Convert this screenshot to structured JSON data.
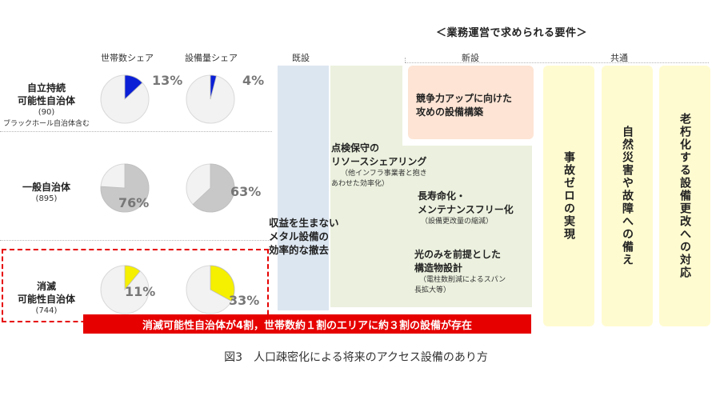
{
  "header": {
    "requirements_title": "＜業務運営で求められる要件＞",
    "col_household_share": "世帯数シェア",
    "col_equipment_share": "設備量シェア",
    "col_existing": "既設",
    "col_new": "新設",
    "col_common": "共通"
  },
  "rows": [
    {
      "name_line1": "自立持続",
      "name_line2": "可能性自治体",
      "count": "(90)",
      "note": "ブラックホール自治体含む",
      "household_pct": "13%",
      "equipment_pct": "4%",
      "household_value": 13,
      "equipment_value": 4,
      "fill_color": "#0a1fd6"
    },
    {
      "name_line1": "一般自治体",
      "count": "(895)",
      "household_pct": "76%",
      "equipment_pct": "63%",
      "household_value": 76,
      "equipment_value": 63,
      "fill_color": "#c8c8c8"
    },
    {
      "name_line1": "消滅",
      "name_line2": "可能性自治体",
      "count": "(744)",
      "household_pct": "11%",
      "equipment_pct": "33%",
      "household_value": 11,
      "equipment_value": 33,
      "fill_color": "#f5ef00"
    }
  ],
  "boxes": {
    "withdraw_line1": "収益を生まない",
    "withdraw_line2": "メタル設備の",
    "withdraw_line3": "効率的な撤去",
    "maintenance_line1": "点検保守の",
    "maintenance_line2": "リソースシェアリング",
    "maintenance_note1": "（他インフラ事業者と抱き",
    "maintenance_note2": "あわせた効率化）",
    "competitive_line1": "競争力アップに向けた",
    "competitive_line2": "攻めの設備構築",
    "longevity_line1": "長寿命化・",
    "longevity_line2": "メンテナンスフリー化",
    "longevity_note": "（設備更改量の縮減）",
    "optical_line1": "光のみを前提とした",
    "optical_line2": "構造物設計",
    "optical_note1": "（電柱数削減によるスパン",
    "optical_note2": "長拡大等）",
    "zero_accident": "事故ゼロの実現",
    "disaster": "自然災害や故障への備え",
    "aging": "老朽化する設備更改への対応"
  },
  "banner": "消滅可能性自治体が4割，世帯数約１割のエリアに約３割の設備が存在",
  "caption": "図3　人口疎密化による将来のアクセス設備のあり方",
  "colors": {
    "existing_bar": "#dce6f1",
    "green_area": "#ebf1de",
    "orange_box": "#fde4d4",
    "yellow_bar": "#fffbd0",
    "banner_red": "#e60000",
    "dashed_red": "#e60000",
    "pie_base": "#f2f2f2"
  }
}
